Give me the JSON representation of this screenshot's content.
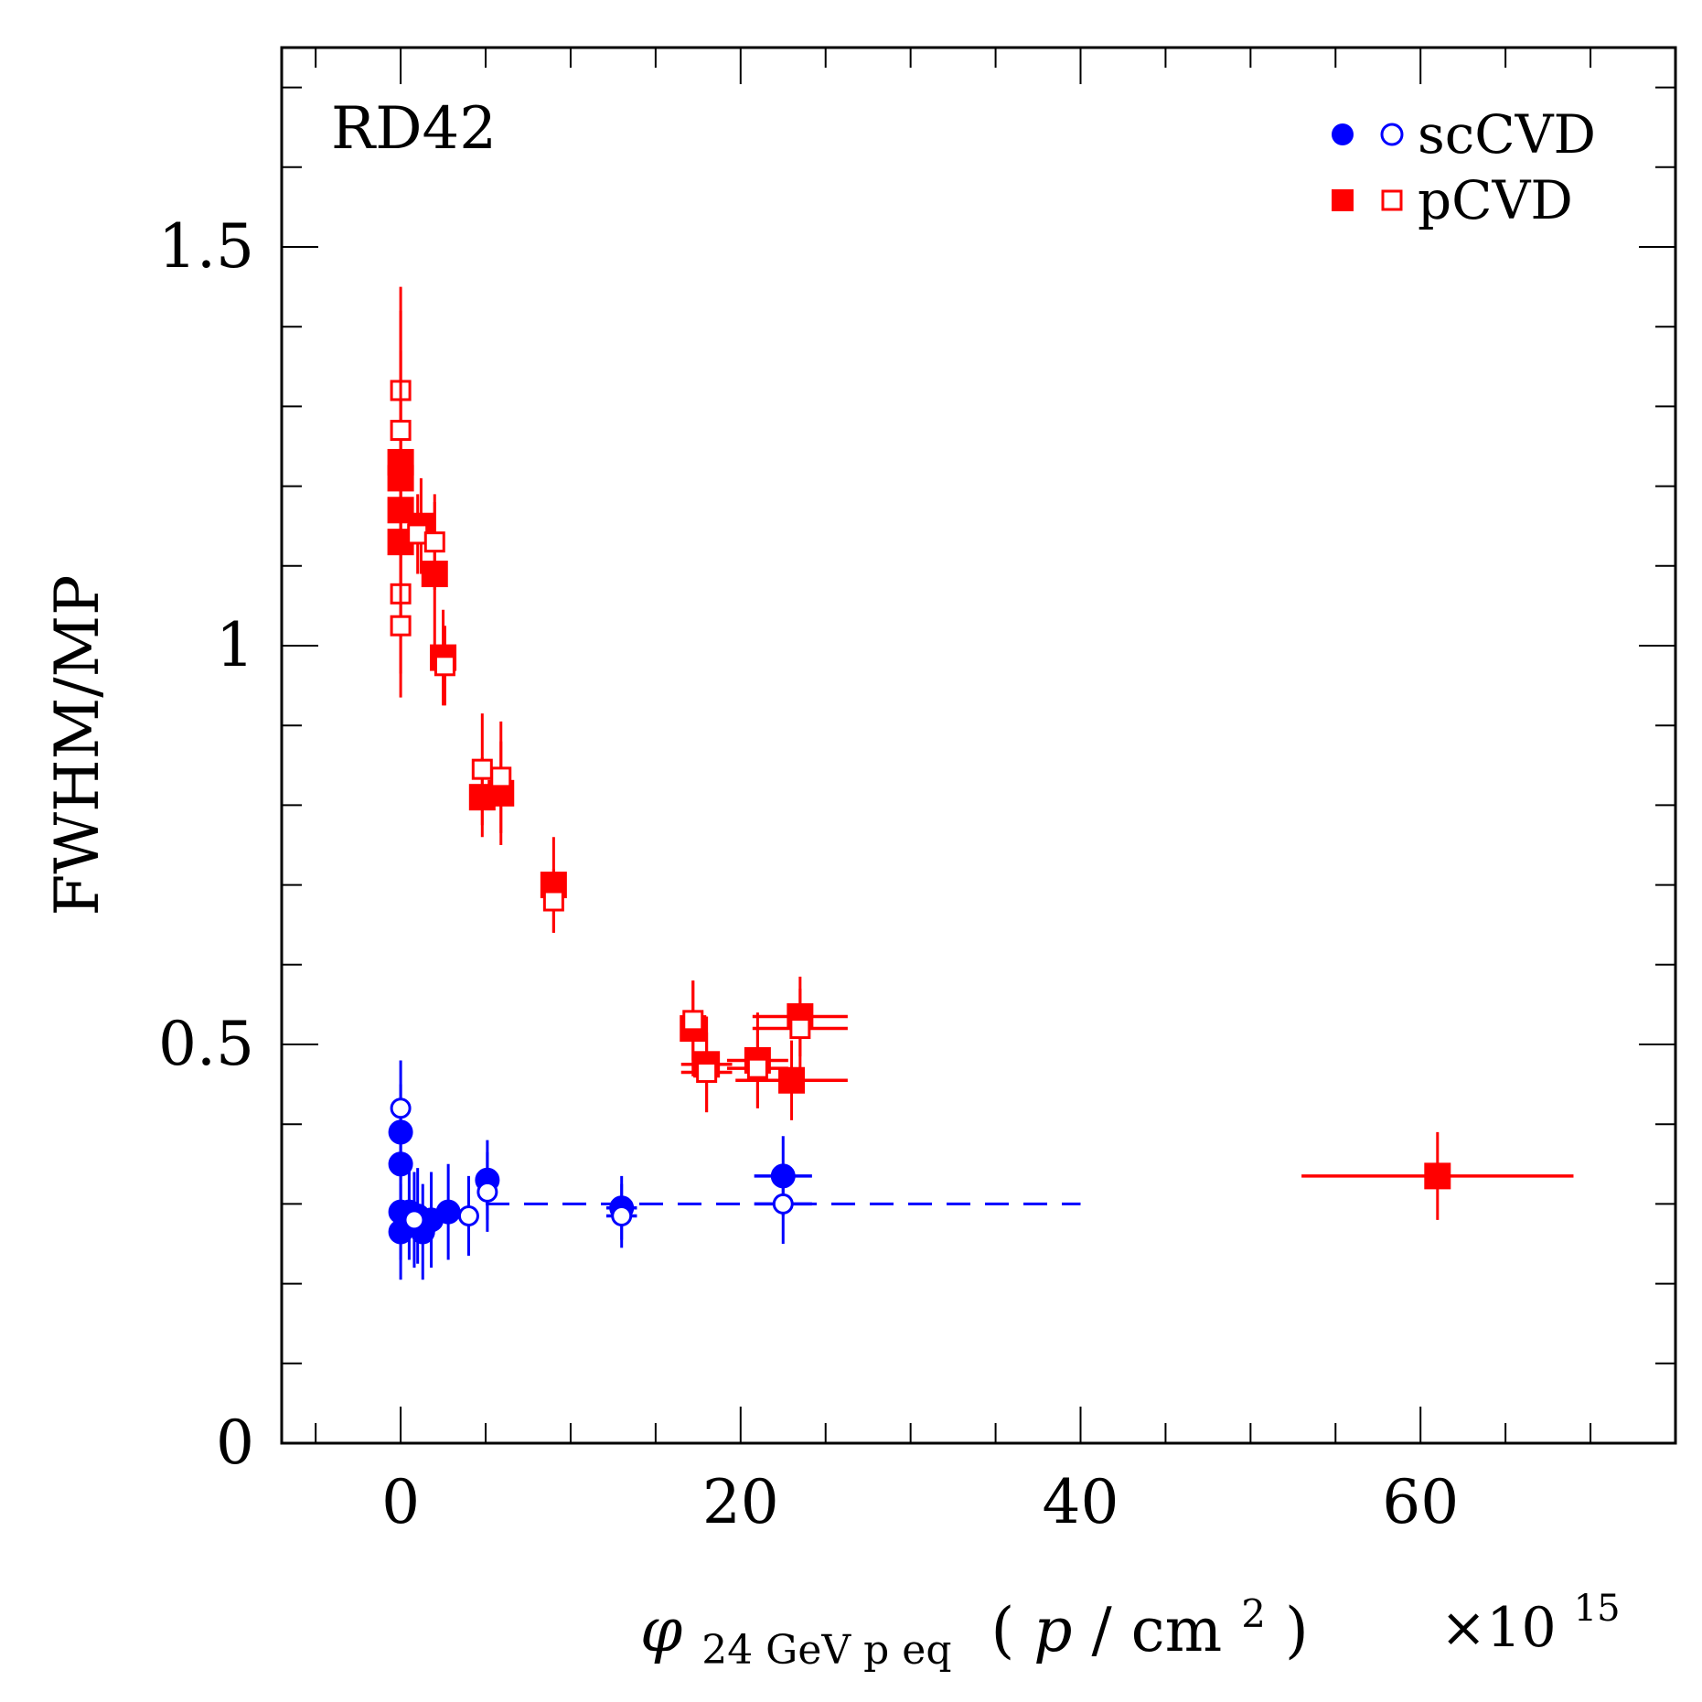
{
  "chart_data": {
    "type": "scatter",
    "title": "",
    "annotation": "RD42",
    "xlabel": {
      "symbol": "φ",
      "subscript": "24 GeV p eq",
      "units_open": "(",
      "units_p": "p",
      "units_slash": "/",
      "units_cm": "cm",
      "units_exp": "2",
      "units_close": ")"
    },
    "xmultiplier": {
      "times": "×10",
      "exponent": "15"
    },
    "ylabel": "FWHM/MP",
    "xlim": [
      -7,
      75
    ],
    "ylim": [
      0,
      1.75
    ],
    "xticks": [
      0,
      20,
      40,
      60
    ],
    "xtick_labels": [
      "0",
      "20",
      "40",
      "60"
    ],
    "yticks": [
      0,
      0.5,
      1,
      1.5
    ],
    "ytick_labels": [
      "0",
      "0.5",
      "1",
      "1.5"
    ],
    "legend": {
      "position": "top-right",
      "entries": [
        {
          "label": "scCVD",
          "color": "#0000ff",
          "marker": "circle"
        },
        {
          "label": "pCVD",
          "color": "#ff0000",
          "marker": "square"
        }
      ]
    },
    "reference_line": {
      "x": [
        5,
        40
      ],
      "y": 0.3,
      "color": "#0000ff",
      "style": "dashed"
    },
    "series": [
      {
        "name": "scCVD filled",
        "color": "#0000ff",
        "marker": "circle",
        "filled": true,
        "points": [
          {
            "x": 0,
            "y": 0.39,
            "ex": 0,
            "ey": 0.06
          },
          {
            "x": 0,
            "y": 0.35,
            "ex": 0,
            "ey": 0.06
          },
          {
            "x": 0,
            "y": 0.29,
            "ex": 0,
            "ey": 0.06
          },
          {
            "x": 0,
            "y": 0.265,
            "ex": 0,
            "ey": 0.06
          },
          {
            "x": 0.5,
            "y": 0.29,
            "ex": 0,
            "ey": 0.06
          },
          {
            "x": 1.0,
            "y": 0.285,
            "ex": 0,
            "ey": 0.06
          },
          {
            "x": 1.3,
            "y": 0.265,
            "ex": 0,
            "ey": 0.06
          },
          {
            "x": 1.8,
            "y": 0.28,
            "ex": 0,
            "ey": 0.06
          },
          {
            "x": 2.8,
            "y": 0.29,
            "ex": 0,
            "ey": 0.06
          },
          {
            "x": 5.1,
            "y": 0.33,
            "ex": 0,
            "ey": 0.05
          },
          {
            "x": 13.0,
            "y": 0.295,
            "ex": 0.9,
            "ey": 0.04
          },
          {
            "x": 22.5,
            "y": 0.335,
            "ex": 1.7,
            "ey": 0.05
          }
        ]
      },
      {
        "name": "scCVD open",
        "color": "#0000ff",
        "marker": "circle",
        "filled": false,
        "points": [
          {
            "x": 0,
            "y": 0.42,
            "ex": 0,
            "ey": 0.06
          },
          {
            "x": 0.8,
            "y": 0.28,
            "ex": 0,
            "ey": 0.06
          },
          {
            "x": 4.0,
            "y": 0.285,
            "ex": 0,
            "ey": 0.05
          },
          {
            "x": 5.1,
            "y": 0.315,
            "ex": 0,
            "ey": 0.05
          },
          {
            "x": 13.0,
            "y": 0.285,
            "ex": 0.9,
            "ey": 0.04
          },
          {
            "x": 22.5,
            "y": 0.3,
            "ex": 1.7,
            "ey": 0.05
          }
        ]
      },
      {
        "name": "pCVD filled",
        "color": "#ff0000",
        "marker": "square",
        "filled": true,
        "points": [
          {
            "x": 0,
            "y": 1.23,
            "ex": 0,
            "ey": 0.22
          },
          {
            "x": 0,
            "y": 1.21,
            "ex": 0,
            "ey": 0.1
          },
          {
            "x": 0,
            "y": 1.17,
            "ex": 0,
            "ey": 0.1
          },
          {
            "x": 0,
            "y": 1.13,
            "ex": 0,
            "ey": 0.1
          },
          {
            "x": 1.2,
            "y": 1.15,
            "ex": 0,
            "ey": 0.06
          },
          {
            "x": 2.0,
            "y": 1.09,
            "ex": 0,
            "ey": 0.09
          },
          {
            "x": 2.5,
            "y": 0.985,
            "ex": 0,
            "ey": 0.06
          },
          {
            "x": 4.8,
            "y": 0.81,
            "ex": 0,
            "ey": 0.05
          },
          {
            "x": 5.9,
            "y": 0.815,
            "ex": 0,
            "ey": 0.065
          },
          {
            "x": 9.0,
            "y": 0.7,
            "ex": 0,
            "ey": 0.06
          },
          {
            "x": 17.2,
            "y": 0.52,
            "ex": 0.7,
            "ey": 0.06
          },
          {
            "x": 18.0,
            "y": 0.475,
            "ex": 1.5,
            "ey": 0.06
          },
          {
            "x": 21.0,
            "y": 0.48,
            "ex": 1.8,
            "ey": 0.06
          },
          {
            "x": 23.0,
            "y": 0.455,
            "ex": 3.3,
            "ey": 0.05
          },
          {
            "x": 23.5,
            "y": 0.535,
            "ex": 2.8,
            "ey": 0.05
          },
          {
            "x": 61.0,
            "y": 0.335,
            "ex": 8.0,
            "ey": 0.055
          }
        ]
      },
      {
        "name": "pCVD open",
        "color": "#ff0000",
        "marker": "square",
        "filled": false,
        "points": [
          {
            "x": 0,
            "y": 1.32,
            "ex": 0,
            "ey": 0.1
          },
          {
            "x": 0,
            "y": 1.27,
            "ex": 0,
            "ey": 0.1
          },
          {
            "x": 0,
            "y": 1.065,
            "ex": 0,
            "ey": 0.1
          },
          {
            "x": 0,
            "y": 1.025,
            "ex": 0,
            "ey": 0.09
          },
          {
            "x": 1.0,
            "y": 1.14,
            "ex": 0,
            "ey": 0.05
          },
          {
            "x": 2.0,
            "y": 1.13,
            "ex": 0,
            "ey": 0.06
          },
          {
            "x": 2.6,
            "y": 0.975,
            "ex": 0,
            "ey": 0.05
          },
          {
            "x": 4.8,
            "y": 0.845,
            "ex": 0,
            "ey": 0.07
          },
          {
            "x": 5.9,
            "y": 0.835,
            "ex": 0,
            "ey": 0.07
          },
          {
            "x": 9.0,
            "y": 0.68,
            "ex": 0,
            "ey": 0.04
          },
          {
            "x": 17.2,
            "y": 0.53,
            "ex": 0.7,
            "ey": 0.05
          },
          {
            "x": 18.0,
            "y": 0.465,
            "ex": 1.5,
            "ey": 0.05
          },
          {
            "x": 21.0,
            "y": 0.47,
            "ex": 1.8,
            "ey": 0.05
          },
          {
            "x": 23.5,
            "y": 0.52,
            "ex": 2.8,
            "ey": 0.05
          }
        ]
      }
    ]
  }
}
